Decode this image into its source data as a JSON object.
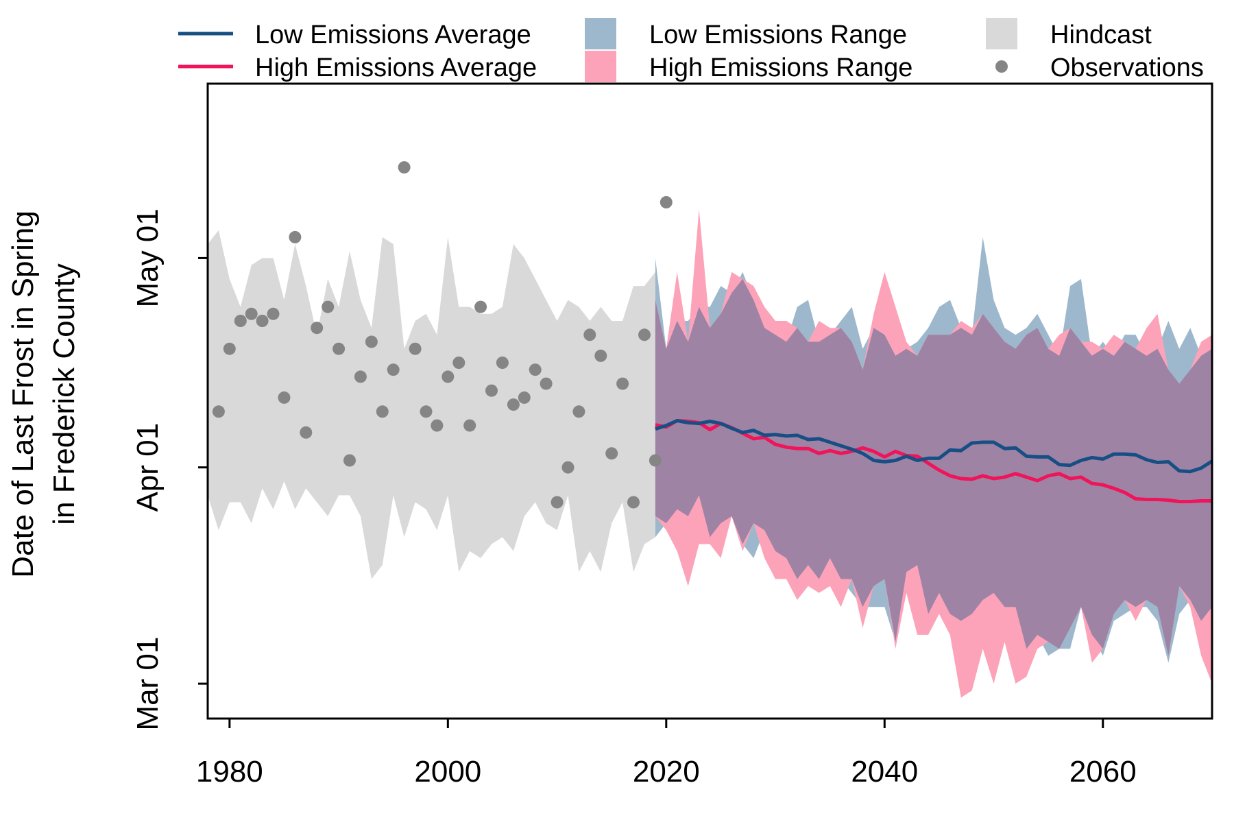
{
  "chart_data": {
    "type": "line",
    "title": "",
    "xlabel": "",
    "ylabel_lines": [
      "Date of Last Frost in Spring",
      "in Frederick County"
    ],
    "xlim": [
      1978,
      2070
    ],
    "ylim_day_of_year": [
      55,
      146
    ],
    "x_ticks": [
      1980,
      2000,
      2020,
      2040,
      2060
    ],
    "y_ticks": [
      {
        "label": "Mar 01",
        "day": 60
      },
      {
        "label": "Apr 01",
        "day": 91
      },
      {
        "label": "May 01",
        "day": 121
      }
    ],
    "grid": false,
    "legend_position": "top",
    "legend": [
      {
        "label": "Low Emissions Average",
        "kind": "line",
        "color": "#174f84"
      },
      {
        "label": "High Emissions Average",
        "kind": "line",
        "color": "#f0145a"
      },
      {
        "label": "Low Emissions Range",
        "kind": "fill",
        "color": "#9db8cc"
      },
      {
        "label": "High Emissions Range",
        "kind": "fill",
        "color": "#fca3b9"
      },
      {
        "label": "Hindcast",
        "kind": "fill",
        "color": "#d9d9d9"
      },
      {
        "label": "Observations",
        "kind": "point",
        "color": "#858585"
      }
    ],
    "colors": {
      "low_avg": "#174f84",
      "high_avg": "#f0145a",
      "low_range": "#9db8cc",
      "high_range": "#fca3b9",
      "overlap": "#9e83a5",
      "hindcast": "#d9d9d9",
      "observations": "#858585"
    },
    "hindcast_range": {
      "x": [
        1978,
        1979,
        1980,
        1981,
        1982,
        1983,
        1984,
        1985,
        1986,
        1987,
        1988,
        1989,
        1990,
        1991,
        1992,
        1993,
        1994,
        1995,
        1996,
        1997,
        1998,
        1999,
        2000,
        2001,
        2002,
        2003,
        2004,
        2005,
        2006,
        2007,
        2008,
        2009,
        2010,
        2011,
        2012,
        2013,
        2014,
        2015,
        2016,
        2017,
        2018,
        2019
      ],
      "upper": [
        123,
        125,
        118,
        114,
        120,
        121,
        121,
        115,
        123,
        117,
        110,
        118,
        114,
        122,
        115,
        111,
        124,
        123,
        108,
        112,
        113,
        110,
        124,
        114,
        114,
        113,
        113,
        114,
        123,
        121,
        118,
        115,
        112,
        115,
        114,
        112,
        114,
        112,
        112,
        117,
        117,
        119
      ],
      "lower": [
        87,
        82,
        86,
        86,
        83,
        88,
        85,
        89,
        85,
        88,
        86,
        84,
        87,
        87,
        84,
        75,
        77,
        87,
        81,
        86,
        85,
        82,
        87,
        76,
        79,
        78,
        80,
        81,
        79,
        84,
        86,
        83,
        82,
        87,
        76,
        79,
        76,
        83,
        86,
        76,
        80,
        81
      ]
    },
    "low_range": {
      "x": [
        2019,
        2020,
        2021,
        2022,
        2023,
        2024,
        2025,
        2026,
        2027,
        2028,
        2029,
        2030,
        2031,
        2032,
        2033,
        2034,
        2035,
        2036,
        2037,
        2038,
        2039,
        2040,
        2041,
        2042,
        2043,
        2044,
        2045,
        2046,
        2047,
        2048,
        2049,
        2050,
        2051,
        2052,
        2053,
        2054,
        2055,
        2056,
        2057,
        2058,
        2059,
        2060,
        2061,
        2062,
        2063,
        2064,
        2065,
        2066,
        2067,
        2068,
        2069,
        2070
      ],
      "upper": [
        121,
        108,
        112,
        112,
        114,
        114,
        117,
        116,
        119,
        115,
        111,
        110,
        109,
        114,
        115,
        109,
        110,
        112,
        114,
        108,
        111,
        110,
        107,
        108,
        109,
        111,
        114,
        115,
        111,
        110,
        124,
        115,
        111,
        110,
        111,
        113,
        110,
        107,
        117,
        118,
        107,
        109,
        107,
        110,
        110,
        107,
        108,
        112,
        108,
        111,
        107,
        108
      ],
      "lower": [
        81,
        83,
        85,
        84,
        87,
        81,
        83,
        84,
        80,
        78,
        82,
        79,
        78,
        75,
        77,
        75,
        78,
        75,
        73,
        71,
        71,
        71,
        66,
        76,
        77,
        70,
        73,
        70,
        69,
        70,
        72,
        73,
        71,
        71,
        65,
        67,
        64,
        65,
        65,
        71,
        67,
        64,
        69,
        70,
        71,
        71,
        69,
        63,
        70,
        72,
        69,
        71
      ]
    },
    "high_range": {
      "x": [
        2019,
        2020,
        2021,
        2022,
        2023,
        2024,
        2025,
        2026,
        2027,
        2028,
        2029,
        2030,
        2031,
        2032,
        2033,
        2034,
        2035,
        2036,
        2037,
        2038,
        2039,
        2040,
        2041,
        2042,
        2043,
        2044,
        2045,
        2046,
        2047,
        2048,
        2049,
        2050,
        2051,
        2052,
        2053,
        2054,
        2055,
        2056,
        2057,
        2058,
        2059,
        2060,
        2061,
        2062,
        2063,
        2064,
        2065,
        2066,
        2067,
        2068,
        2069,
        2070
      ],
      "upper": [
        115,
        108,
        119,
        109,
        128,
        111,
        113,
        119,
        118,
        117,
        114,
        112,
        112,
        111,
        109,
        112,
        111,
        111,
        109,
        105,
        113,
        119,
        114,
        109,
        107,
        110,
        110,
        110,
        112,
        111,
        113,
        111,
        109,
        108,
        110,
        111,
        108,
        110,
        111,
        109,
        109,
        108,
        110,
        109,
        108,
        111,
        113,
        105,
        103,
        105,
        109,
        110
      ],
      "lower": [
        84,
        82,
        79,
        74,
        80,
        80,
        78,
        84,
        79,
        83,
        78,
        75,
        75,
        72,
        74,
        73,
        74,
        71,
        75,
        68,
        74,
        75,
        65,
        73,
        67,
        67,
        70,
        67,
        58,
        59,
        65,
        60,
        66,
        60,
        61,
        65,
        66,
        65,
        68,
        71,
        63,
        65,
        70,
        72,
        69,
        72,
        71,
        64,
        74,
        71,
        64,
        60
      ]
    },
    "low_average": {
      "x": [
        2019,
        2020,
        2021,
        2022,
        2023,
        2024,
        2025,
        2026,
        2027,
        2028,
        2029,
        2030,
        2031,
        2032,
        2033,
        2034,
        2035,
        2036,
        2037,
        2038,
        2039,
        2040,
        2041,
        2042,
        2043,
        2044,
        2045,
        2046,
        2047,
        2048,
        2049,
        2050,
        2051,
        2052,
        2053,
        2054,
        2055,
        2056,
        2057,
        2058,
        2059,
        2060,
        2061,
        2062,
        2063,
        2064,
        2065,
        2066,
        2067,
        2068,
        2069,
        2070
      ],
      "values": [
        96.5,
        97.0,
        97.7,
        97.4,
        97.3,
        97.6,
        97.3,
        96.6,
        96.0,
        96.3,
        95.6,
        95.7,
        95.5,
        95.6,
        95.0,
        95.1,
        94.6,
        94.1,
        93.6,
        93.0,
        92.0,
        91.8,
        92.0,
        92.6,
        92.0,
        92.3,
        92.3,
        93.5,
        93.4,
        94.5,
        94.6,
        94.6,
        93.7,
        93.8,
        92.6,
        92.5,
        92.5,
        91.4,
        91.3,
        92.0,
        92.4,
        92.2,
        92.9,
        92.9,
        92.8,
        92.1,
        91.7,
        91.8,
        90.5,
        90.4,
        90.9,
        91.9
      ]
    },
    "high_average": {
      "x": [
        2019,
        2020,
        2021,
        2022,
        2023,
        2024,
        2025,
        2026,
        2027,
        2028,
        2029,
        2030,
        2031,
        2032,
        2033,
        2034,
        2035,
        2036,
        2037,
        2038,
        2039,
        2040,
        2041,
        2042,
        2043,
        2044,
        2045,
        2046,
        2047,
        2048,
        2049,
        2050,
        2051,
        2052,
        2053,
        2054,
        2055,
        2056,
        2057,
        2058,
        2059,
        2060,
        2061,
        2062,
        2063,
        2064,
        2065,
        2066,
        2067,
        2068,
        2069,
        2070
      ],
      "values": [
        97.1,
        96.8,
        97.7,
        97.6,
        97.4,
        96.4,
        97.3,
        96.7,
        95.9,
        95.1,
        95.3,
        94.3,
        93.9,
        93.7,
        93.7,
        93.0,
        93.4,
        93.0,
        93.3,
        93.8,
        93.3,
        92.5,
        93.3,
        92.7,
        92.6,
        91.6,
        90.6,
        89.8,
        89.4,
        89.3,
        89.8,
        89.4,
        89.6,
        90.1,
        89.6,
        89.1,
        89.8,
        90.1,
        89.4,
        89.6,
        88.7,
        88.5,
        88.0,
        87.4,
        86.5,
        86.4,
        86.4,
        86.3,
        86.1,
        86.1,
        86.2,
        86.2
      ]
    },
    "observations": {
      "x": [
        1979,
        1980,
        1981,
        1982,
        1983,
        1984,
        1985,
        1986,
        1987,
        1988,
        1989,
        1990,
        1991,
        1992,
        1993,
        1994,
        1995,
        1996,
        1997,
        1998,
        1999,
        2000,
        2001,
        2002,
        2003,
        2004,
        2005,
        2006,
        2007,
        2008,
        2009,
        2010,
        2011,
        2012,
        2013,
        2014,
        2015,
        2016,
        2017,
        2018,
        2019,
        2020
      ],
      "values": [
        99,
        108,
        112,
        113,
        112,
        113,
        101,
        124,
        96,
        111,
        114,
        108,
        92,
        104,
        109,
        99,
        105,
        134,
        108,
        99,
        97,
        104,
        106,
        97,
        114,
        102,
        106,
        100,
        101,
        105,
        103,
        86,
        91,
        99,
        110,
        107,
        93,
        103,
        86,
        110,
        92,
        129
      ]
    }
  }
}
